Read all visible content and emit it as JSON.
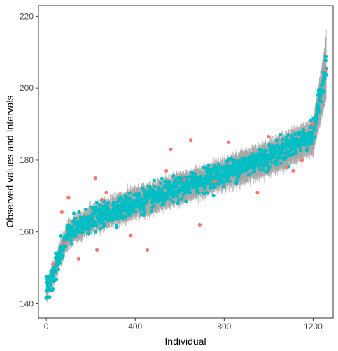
{
  "chart_data": {
    "type": "scatter",
    "title": "",
    "xlabel": "Individual",
    "ylabel": "Observed values and Intervals",
    "xlim": [
      -35,
      1290
    ],
    "ylim": [
      136,
      223
    ],
    "x_ticks": [
      "0",
      "400",
      "800",
      "1200"
    ],
    "x_tick_values": [
      0,
      400,
      800,
      1200
    ],
    "y_ticks": [
      "140",
      "160",
      "180",
      "200",
      "220"
    ],
    "y_tick_values": [
      140,
      160,
      180,
      200,
      220
    ],
    "grid": false,
    "legend": "none",
    "n_points": 1260,
    "colors": {
      "inside": "#00BFC4",
      "outside": "#F8766D",
      "interval": "#A6A6A6"
    },
    "series": [
      {
        "role": "interval",
        "style": "vertical-segment",
        "description_of_values": "sorted prediction bounds",
        "sample_x": [
          0,
          100,
          200,
          400,
          600,
          800,
          1000,
          1200,
          1259
        ],
        "sample_lower": [
          141,
          156,
          160,
          164,
          168,
          172,
          176,
          182,
          197
        ],
        "sample_upper": [
          146,
          163,
          167,
          172,
          176,
          180,
          185,
          191,
          214.5
        ]
      },
      {
        "role": "inside",
        "style": "point",
        "sample_x": [
          0,
          100,
          200,
          400,
          600,
          800,
          1000,
          1200,
          1259
        ],
        "sample_y": [
          143.5,
          159.5,
          163.5,
          168,
          172,
          176.5,
          181,
          187,
          207
        ]
      },
      {
        "role": "outside",
        "style": "point",
        "x": [
          30,
          70,
          80,
          100,
          145,
          220,
          228,
          250,
          270,
          380,
          455,
          540,
          560,
          620,
          650,
          690,
          760,
          820,
          950,
          1000,
          1080,
          1110,
          1150,
          1200,
          1255
        ],
        "y": [
          151,
          165.5,
          157,
          169.5,
          152.5,
          175,
          155,
          169,
          171,
          159,
          155,
          177,
          183,
          174.5,
          185.5,
          162,
          174,
          185,
          171,
          186.5,
          178,
          177,
          180,
          190,
          205
        ]
      }
    ]
  }
}
